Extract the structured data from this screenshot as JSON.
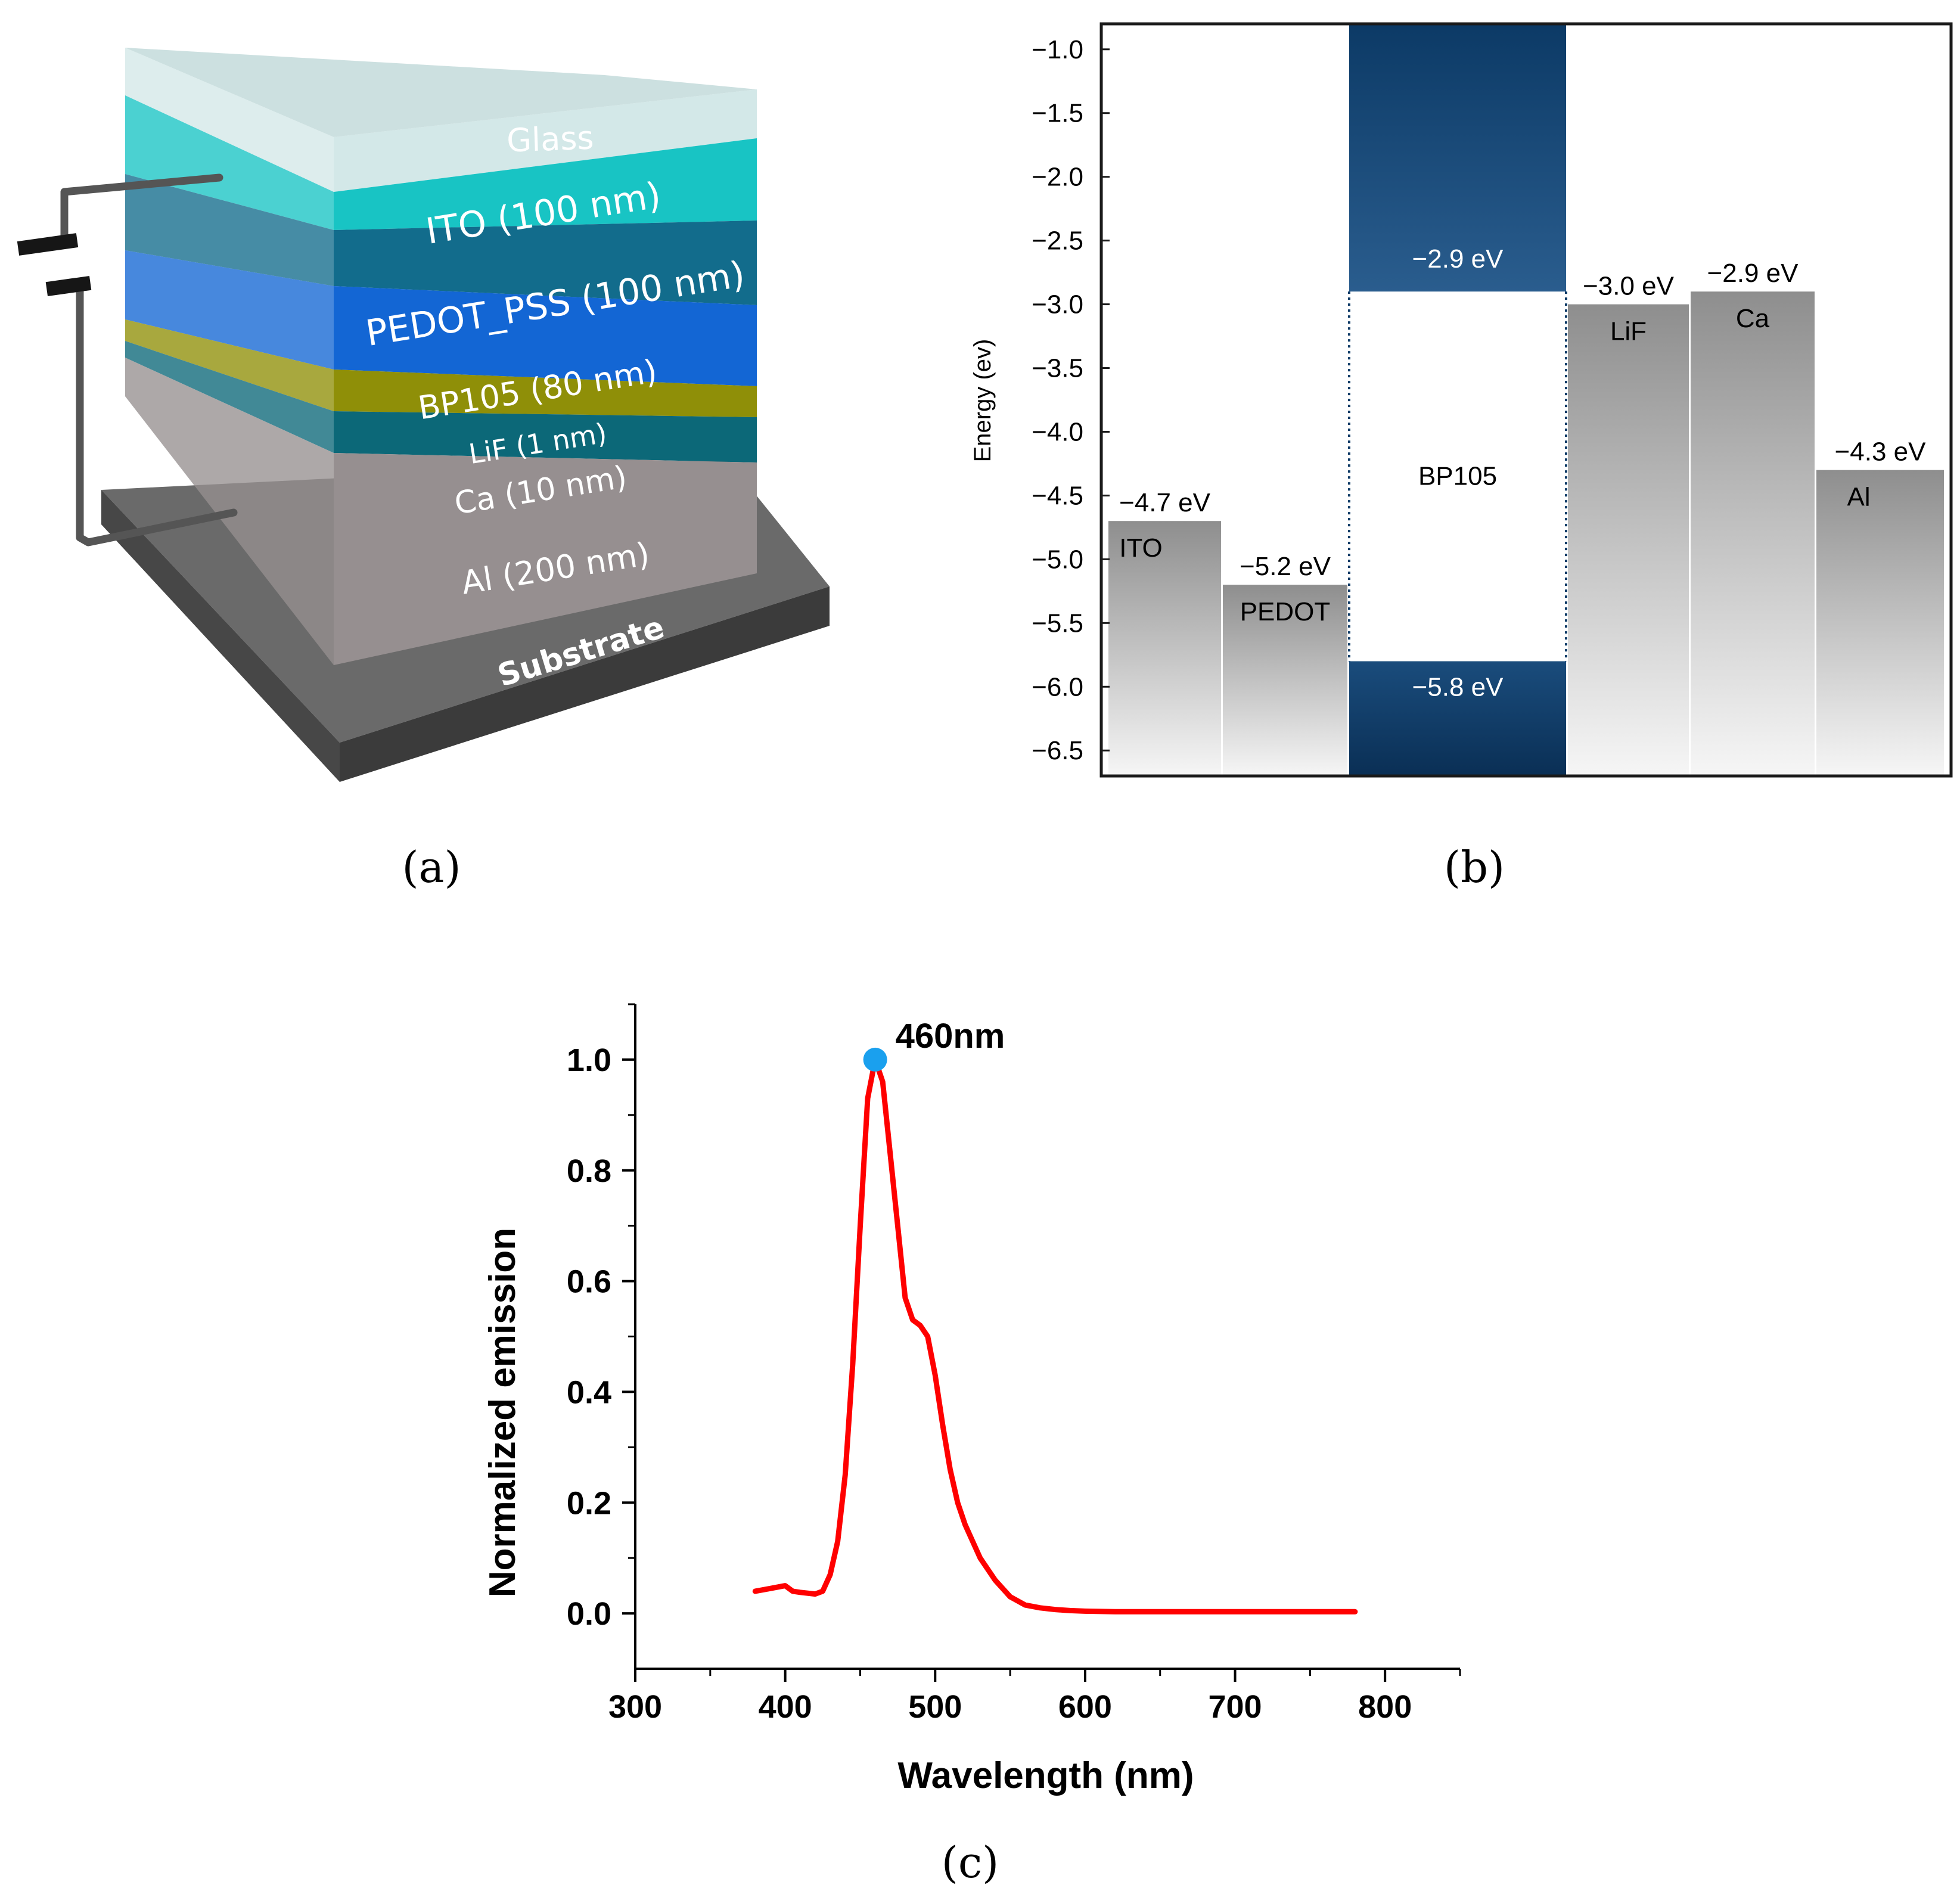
{
  "panel_labels": {
    "a": "(a)",
    "b": "(b)",
    "c": "(c)"
  },
  "device_stack": {
    "layers": [
      {
        "name": "glass",
        "label": "Glass",
        "color": "#d3e8e8"
      },
      {
        "name": "ito",
        "label": "ITO (100 nm)",
        "color": "#18c4c4"
      },
      {
        "name": "pedot",
        "label": "PEDOT_PSS (100 nm)",
        "color": "#126c8c"
      },
      {
        "name": "bp105",
        "label": "BP105 (80 nm)",
        "color": "#1366d4"
      },
      {
        "name": "lif",
        "label": "LiF (1 nm)",
        "color": "#8f8f08"
      },
      {
        "name": "ca",
        "label": "Ca (10 nm)",
        "color": "#0c6878"
      },
      {
        "name": "al",
        "label": "Al (200 nm)",
        "color": "#968f90"
      }
    ],
    "substrate": {
      "label": "Substrate",
      "color": "#555555"
    }
  },
  "chart_data": [
    {
      "type": "bar",
      "subtype": "energy-level-diagram",
      "ylabel": "Energy (ev)",
      "ylim": [
        -6.7,
        -0.8
      ],
      "yticks": [
        "−1.0",
        "−1.5",
        "−2.0",
        "−2.5",
        "−3.0",
        "−3.5",
        "−4.0",
        "−4.5",
        "−5.0",
        "−5.5",
        "−6.0",
        "−6.5"
      ],
      "ytick_values": [
        -1.0,
        -1.5,
        -2.0,
        -2.5,
        -3.0,
        -3.5,
        -4.0,
        -4.5,
        -5.0,
        -5.5,
        -6.0,
        -6.5
      ],
      "gray_bars": [
        {
          "name": "ITO",
          "top": -4.7,
          "value_label": "−4.7 eV"
        },
        {
          "name": "PEDOT",
          "top": -5.2,
          "value_label": "−5.2 eV"
        },
        {
          "name": "LiF",
          "top": -3.0,
          "value_label": "−3.0 eV"
        },
        {
          "name": "Ca",
          "top": -2.9,
          "value_label": "−2.9 eV"
        },
        {
          "name": "Al",
          "top": -4.3,
          "value_label": "−4.3 eV"
        }
      ],
      "emitter": {
        "name": "BP105",
        "lumo": -2.9,
        "homo": -5.8,
        "lumo_label": "−2.9 eV",
        "homo_label": "−5.8 eV"
      },
      "colors": {
        "emitter": "#0c3a66",
        "gray_top": "#8e8e8e",
        "gray_bottom": "#f6f6f6"
      }
    },
    {
      "type": "line",
      "xlabel": "Wavelength (nm)",
      "ylabel": "Normalized emission",
      "xlim": [
        300,
        850
      ],
      "ylim": [
        -0.1,
        1.1
      ],
      "xticks": [
        300,
        400,
        500,
        600,
        700,
        800
      ],
      "yticks": [
        "0.0",
        "0.2",
        "0.4",
        "0.6",
        "0.8",
        "1.0"
      ],
      "ytick_values": [
        0.0,
        0.2,
        0.4,
        0.6,
        0.8,
        1.0
      ],
      "series": [
        {
          "name": "emission",
          "color": "#ff0000",
          "x": [
            380,
            390,
            400,
            405,
            410,
            420,
            425,
            430,
            435,
            440,
            445,
            450,
            455,
            460,
            465,
            470,
            475,
            480,
            485,
            490,
            495,
            500,
            505,
            510,
            515,
            520,
            525,
            530,
            540,
            550,
            560,
            570,
            580,
            590,
            600,
            620,
            650,
            700,
            750,
            780
          ],
          "y": [
            0.04,
            0.045,
            0.05,
            0.04,
            0.038,
            0.035,
            0.04,
            0.07,
            0.13,
            0.25,
            0.45,
            0.7,
            0.93,
            1.0,
            0.96,
            0.83,
            0.7,
            0.57,
            0.53,
            0.52,
            0.5,
            0.43,
            0.34,
            0.26,
            0.2,
            0.16,
            0.13,
            0.1,
            0.06,
            0.03,
            0.015,
            0.01,
            0.007,
            0.005,
            0.004,
            0.003,
            0.003,
            0.003,
            0.003,
            0.003
          ]
        }
      ],
      "annotation": {
        "x": 460,
        "y": 1.0,
        "label": "460nm",
        "color": "#1aa0ee"
      }
    }
  ]
}
